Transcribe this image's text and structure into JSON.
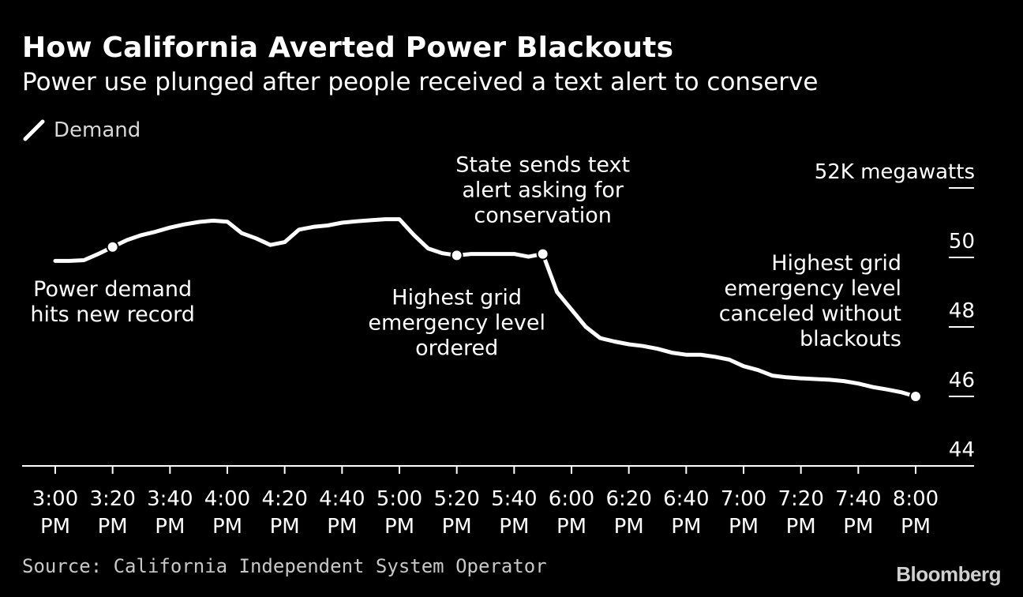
{
  "header": {
    "title": "How California Averted Power Blackouts",
    "subtitle": "Power use plunged after people received a text alert to conserve"
  },
  "legend": {
    "label": "Demand"
  },
  "footer": {
    "source": "Source: California Independent System Operator",
    "brand": "Bloomberg"
  },
  "chart_data": {
    "type": "line",
    "title": "How California Averted Power Blackouts",
    "subtitle": "Power use plunged after people received a text alert to conserve",
    "xlabel": "",
    "ylabel": "megawatts (thousands)",
    "y_unit_label": "52K megawatts",
    "ylim": [
      44,
      52
    ],
    "yticks": [
      44,
      46,
      48,
      50,
      52
    ],
    "ytick_labels": [
      "44",
      "46",
      "48",
      "50",
      "52K megawatts"
    ],
    "xlim": [
      0,
      300
    ],
    "xticks": [
      0,
      20,
      40,
      60,
      80,
      100,
      120,
      140,
      160,
      180,
      200,
      220,
      240,
      260,
      280,
      300
    ],
    "xtick_labels": [
      [
        "3:00",
        "PM"
      ],
      [
        "3:20",
        "PM"
      ],
      [
        "3:40",
        "PM"
      ],
      [
        "4:00",
        "PM"
      ],
      [
        "4:20",
        "PM"
      ],
      [
        "4:40",
        "PM"
      ],
      [
        "5:00",
        "PM"
      ],
      [
        "5:20",
        "PM"
      ],
      [
        "5:40",
        "PM"
      ],
      [
        "6:00",
        "PM"
      ],
      [
        "6:20",
        "PM"
      ],
      [
        "6:40",
        "PM"
      ],
      [
        "7:00",
        "PM"
      ],
      [
        "7:20",
        "PM"
      ],
      [
        "7:40",
        "PM"
      ],
      [
        "8:00",
        "PM"
      ]
    ],
    "grid": false,
    "legend": "top-left",
    "series": [
      {
        "name": "Demand",
        "color": "#ffffff",
        "x": [
          0,
          5,
          10,
          15,
          20,
          25,
          30,
          35,
          40,
          45,
          50,
          55,
          60,
          65,
          70,
          75,
          80,
          85,
          90,
          95,
          100,
          105,
          110,
          115,
          120,
          125,
          130,
          135,
          140,
          145,
          150,
          155,
          160,
          165,
          170,
          175,
          180,
          185,
          190,
          195,
          200,
          205,
          210,
          215,
          220,
          225,
          230,
          235,
          240,
          245,
          250,
          255,
          260,
          265,
          270,
          275,
          280,
          285,
          290,
          295,
          300
        ],
        "values": [
          49.9,
          49.9,
          49.92,
          50.1,
          50.3,
          50.5,
          50.64,
          50.74,
          50.86,
          50.95,
          51.02,
          51.06,
          51.03,
          50.7,
          50.55,
          50.36,
          50.44,
          50.8,
          50.88,
          50.92,
          51.0,
          51.04,
          51.07,
          51.1,
          51.1,
          50.65,
          50.26,
          50.12,
          50.06,
          50.1,
          50.1,
          50.1,
          50.1,
          50.02,
          50.1,
          49.0,
          48.5,
          48.0,
          47.68,
          47.58,
          47.5,
          47.45,
          47.37,
          47.26,
          47.2,
          47.2,
          47.14,
          47.06,
          46.87,
          46.76,
          46.6,
          46.55,
          46.52,
          46.5,
          46.48,
          46.44,
          46.37,
          46.27,
          46.2,
          46.12,
          46.0
        ]
      }
    ],
    "annotations": [
      {
        "x": 20,
        "y": 50.3,
        "lines": [
          "Power demand",
          "hits new record"
        ],
        "position": "below"
      },
      {
        "x": 140,
        "y": 50.06,
        "lines": [
          "Highest grid",
          "emergency level",
          "ordered"
        ],
        "position": "below"
      },
      {
        "x": 170,
        "y": 50.1,
        "lines": [
          "State sends text",
          "alert asking for",
          "conservation"
        ],
        "position": "above"
      },
      {
        "x": 300,
        "y": 46.0,
        "lines": [
          "Highest grid",
          "emergency level",
          "canceled without",
          "blackouts"
        ],
        "position": "left"
      }
    ]
  }
}
